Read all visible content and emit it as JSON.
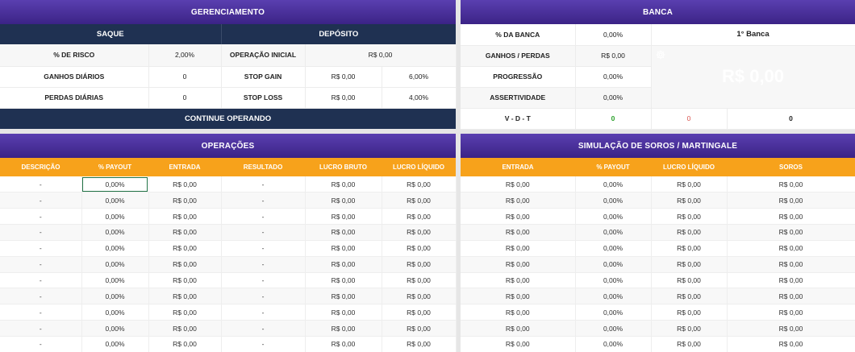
{
  "gerenciamento": {
    "title": "GERENCIAMENTO",
    "saque_label": "SAQUE",
    "deposito_label": "DEPÓSITO",
    "risco_label": "% DE RISCO",
    "risco_value": "2,00%",
    "op_inicial_label": "OPERAÇÃO INICIAL",
    "op_inicial_value": "R$ 0,00",
    "ganhos_diarios_label": "GANHOS DIÁRIOS",
    "ganhos_diarios_value": "0",
    "stop_gain_label": "STOP GAIN",
    "stop_gain_value": "R$ 0,00",
    "stop_gain_pct": "6,00%",
    "perdas_diarias_label": "PERDAS DIÁRIAS",
    "perdas_diarias_value": "0",
    "stop_loss_label": "STOP LOSS",
    "stop_loss_value": "R$ 0,00",
    "stop_loss_pct": "4,00%",
    "status": "CONTINUE OPERANDO"
  },
  "banca": {
    "title": "BANCA",
    "pct_label": "% DA BANCA",
    "pct_value": "0,00%",
    "first_label": "1° Banca",
    "ganhos_label": "GANHOS / PERDAS",
    "ganhos_value": "R$ 0,00",
    "progressao_label": "PROGRESSÃO",
    "progressao_value": "0,00%",
    "assertividade_label": "ASSERTIVIDADE",
    "assertividade_value": "0,00%",
    "big_value": "R$ 0,00",
    "vdt_label": "V - D - T",
    "v": "0",
    "d": "0",
    "t": "0"
  },
  "operacoes": {
    "title": "OPERAÇÕES",
    "columns": [
      "DESCRIÇÃO",
      "% PAYOUT",
      "ENTRADA",
      "RESULTADO",
      "LUCRO BRUTO",
      "LUCRO LÍQUIDO"
    ],
    "rows": [
      [
        "-",
        "0,00%",
        "R$ 0,00",
        "-",
        "R$ 0,00",
        "R$ 0,00"
      ],
      [
        "-",
        "0,00%",
        "R$ 0,00",
        "-",
        "R$ 0,00",
        "R$ 0,00"
      ],
      [
        "-",
        "0,00%",
        "R$ 0,00",
        "-",
        "R$ 0,00",
        "R$ 0,00"
      ],
      [
        "-",
        "0,00%",
        "R$ 0,00",
        "-",
        "R$ 0,00",
        "R$ 0,00"
      ],
      [
        "-",
        "0,00%",
        "R$ 0,00",
        "-",
        "R$ 0,00",
        "R$ 0,00"
      ],
      [
        "-",
        "0,00%",
        "R$ 0,00",
        "-",
        "R$ 0,00",
        "R$ 0,00"
      ],
      [
        "-",
        "0,00%",
        "R$ 0,00",
        "-",
        "R$ 0,00",
        "R$ 0,00"
      ],
      [
        "-",
        "0,00%",
        "R$ 0,00",
        "-",
        "R$ 0,00",
        "R$ 0,00"
      ],
      [
        "-",
        "0,00%",
        "R$ 0,00",
        "-",
        "R$ 0,00",
        "R$ 0,00"
      ],
      [
        "-",
        "0,00%",
        "R$ 0,00",
        "-",
        "R$ 0,00",
        "R$ 0,00"
      ],
      [
        "-",
        "0,00%",
        "R$ 0,00",
        "-",
        "R$ 0,00",
        "R$ 0,00"
      ]
    ]
  },
  "simulacao": {
    "title": "SIMULAÇÃO DE SOROS / MARTINGALE",
    "columns": [
      "ENTRADA",
      "% PAYOUT",
      "LUCRO LÍQUIDO",
      "SOROS"
    ],
    "rows": [
      [
        "R$ 0,00",
        "0,00%",
        "R$ 0,00",
        "R$ 0,00"
      ],
      [
        "R$ 0,00",
        "0,00%",
        "R$ 0,00",
        "R$ 0,00"
      ],
      [
        "R$ 0,00",
        "0,00%",
        "R$ 0,00",
        "R$ 0,00"
      ],
      [
        "R$ 0,00",
        "0,00%",
        "R$ 0,00",
        "R$ 0,00"
      ],
      [
        "R$ 0,00",
        "0,00%",
        "R$ 0,00",
        "R$ 0,00"
      ],
      [
        "R$ 0,00",
        "0,00%",
        "R$ 0,00",
        "R$ 0,00"
      ],
      [
        "R$ 0,00",
        "0,00%",
        "R$ 0,00",
        "R$ 0,00"
      ],
      [
        "R$ 0,00",
        "0,00%",
        "R$ 0,00",
        "R$ 0,00"
      ],
      [
        "R$ 0,00",
        "0,00%",
        "R$ 0,00",
        "R$ 0,00"
      ],
      [
        "R$ 0,00",
        "0,00%",
        "R$ 0,00",
        "R$ 0,00"
      ],
      [
        "R$ 0,00",
        "0,00%",
        "R$ 0,00",
        "R$ 0,00"
      ]
    ]
  },
  "colors": {
    "header_purple": "#3b2386",
    "navy": "#1f3152",
    "orange": "#f7a21b",
    "win_green": "#2aa02a",
    "loss_red": "#d9534f"
  }
}
